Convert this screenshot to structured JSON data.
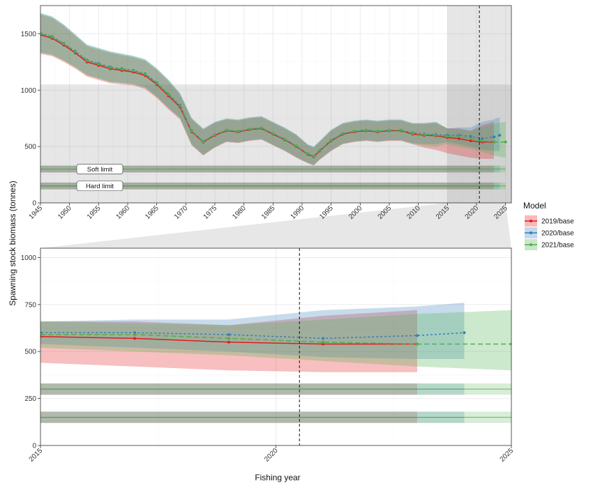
{
  "chart_data": {
    "type": "line",
    "xlabel": "Fishing year",
    "ylabel": "Spawning stock biomass (tonnes)",
    "legend": {
      "title": "Model",
      "placement": "right",
      "entries": [
        {
          "name": "2019/base",
          "color": "#e41a1c"
        },
        {
          "name": "2020/base",
          "color": "#377eb8"
        },
        {
          "name": "2021/base",
          "color": "#4daf4a"
        }
      ]
    },
    "colors": {
      "2019/base": "#e41a1c",
      "2020/base": "#377eb8",
      "2021/base": "#4daf4a"
    },
    "reference_lines": [
      {
        "label": "Soft limit",
        "value": 300
      },
      {
        "label": "Hard limit",
        "value": 150
      }
    ],
    "current_year_marker": 2020.5,
    "panels": [
      {
        "name": "full-series",
        "xlim": [
          1945,
          2026
        ],
        "ylim": [
          0,
          1750
        ],
        "xticks": [
          1945,
          1950,
          1955,
          1960,
          1965,
          1970,
          1975,
          1980,
          1985,
          1990,
          1995,
          2000,
          2005,
          2010,
          2015,
          2020,
          2025
        ],
        "yticks": [
          0,
          500,
          1000,
          1500
        ],
        "zoom_region": {
          "x": [
            2015,
            2025
          ],
          "y": [
            0,
            1050
          ]
        }
      },
      {
        "name": "zoom",
        "xlim": [
          2015,
          2025
        ],
        "ylim": [
          0,
          1050
        ],
        "xticks": [
          2015,
          2020,
          2025
        ],
        "yticks": [
          0,
          250,
          500,
          750,
          1000
        ]
      }
    ],
    "series": [
      {
        "name": "2019/base",
        "x": [
          1945,
          1947,
          1949,
          1951,
          1953,
          1955,
          1957,
          1959,
          1961,
          1963,
          1965,
          1967,
          1969,
          1971,
          1973,
          1975,
          1977,
          1979,
          1981,
          1983,
          1985,
          1987,
          1989,
          1991,
          1992,
          1993,
          1995,
          1997,
          1999,
          2001,
          2003,
          2005,
          2007,
          2009,
          2011,
          2013,
          2015,
          2017,
          2019,
          2021,
          2023
        ],
        "y": [
          1490,
          1460,
          1400,
          1330,
          1250,
          1220,
          1190,
          1175,
          1160,
          1130,
          1050,
          950,
          850,
          630,
          540,
          600,
          640,
          630,
          650,
          660,
          610,
          560,
          500,
          430,
          410,
          460,
          550,
          610,
          630,
          640,
          630,
          640,
          640,
          610,
          600,
          595,
          580,
          570,
          550,
          540,
          540
        ],
        "lower": [
          1320,
          1300,
          1250,
          1190,
          1120,
          1090,
          1060,
          1050,
          1040,
          1010,
          930,
          830,
          740,
          510,
          420,
          490,
          540,
          530,
          550,
          560,
          510,
          460,
          400,
          350,
          330,
          380,
          460,
          520,
          540,
          550,
          540,
          550,
          550,
          520,
          490,
          470,
          440,
          420,
          400,
          390,
          390
        ],
        "upper": [
          1670,
          1640,
          1570,
          1480,
          1390,
          1360,
          1330,
          1310,
          1290,
          1260,
          1180,
          1080,
          960,
          740,
          650,
          710,
          740,
          730,
          750,
          760,
          710,
          660,
          600,
          510,
          490,
          540,
          640,
          700,
          720,
          730,
          720,
          730,
          730,
          700,
          700,
          710,
          660,
          660,
          640,
          690,
          720
        ]
      },
      {
        "name": "2020/base",
        "x": [
          1945,
          1947,
          1949,
          1951,
          1953,
          1955,
          1957,
          1959,
          1961,
          1963,
          1965,
          1967,
          1969,
          1971,
          1973,
          1975,
          1977,
          1979,
          1981,
          1983,
          1985,
          1987,
          1989,
          1991,
          1992,
          1993,
          1995,
          1997,
          1999,
          2001,
          2003,
          2005,
          2007,
          2009,
          2011,
          2013,
          2015,
          2017,
          2019,
          2021,
          2023,
          2024
        ],
        "y": [
          1505,
          1475,
          1415,
          1345,
          1265,
          1235,
          1205,
          1190,
          1175,
          1145,
          1065,
          965,
          865,
          640,
          545,
          605,
          645,
          635,
          655,
          665,
          615,
          565,
          505,
          435,
          415,
          465,
          555,
          615,
          635,
          645,
          635,
          645,
          645,
          620,
          610,
          605,
          600,
          600,
          590,
          570,
          585,
          600
        ],
        "lower": [
          1335,
          1315,
          1265,
          1205,
          1135,
          1105,
          1075,
          1065,
          1055,
          1025,
          945,
          845,
          755,
          520,
          425,
          495,
          545,
          535,
          555,
          565,
          515,
          465,
          405,
          355,
          335,
          385,
          465,
          525,
          545,
          555,
          545,
          555,
          555,
          530,
          520,
          520,
          540,
          520,
          500,
          470,
          460,
          460
        ],
        "upper": [
          1685,
          1655,
          1585,
          1495,
          1405,
          1375,
          1345,
          1325,
          1305,
          1275,
          1195,
          1095,
          975,
          755,
          660,
          720,
          750,
          740,
          760,
          770,
          720,
          670,
          610,
          520,
          500,
          550,
          650,
          710,
          730,
          740,
          730,
          740,
          740,
          710,
          710,
          720,
          660,
          670,
          670,
          720,
          740,
          760
        ]
      },
      {
        "name": "2021/base",
        "x": [
          1945,
          1947,
          1949,
          1951,
          1953,
          1955,
          1957,
          1959,
          1961,
          1963,
          1965,
          1967,
          1969,
          1971,
          1973,
          1975,
          1977,
          1979,
          1981,
          1983,
          1985,
          1987,
          1989,
          1991,
          1992,
          1993,
          1995,
          1997,
          1999,
          2001,
          2003,
          2005,
          2007,
          2009,
          2011,
          2013,
          2015,
          2017,
          2019,
          2021,
          2023,
          2025
        ],
        "y": [
          1500,
          1470,
          1410,
          1340,
          1260,
          1230,
          1200,
          1185,
          1170,
          1140,
          1060,
          960,
          860,
          635,
          545,
          605,
          645,
          635,
          655,
          665,
          615,
          565,
          505,
          435,
          415,
          465,
          555,
          615,
          635,
          645,
          635,
          645,
          645,
          615,
          605,
          600,
          590,
          590,
          570,
          550,
          540,
          540
        ],
        "lower": [
          1330,
          1310,
          1260,
          1200,
          1130,
          1100,
          1070,
          1060,
          1050,
          1020,
          940,
          840,
          750,
          515,
          425,
          495,
          545,
          535,
          555,
          565,
          515,
          465,
          405,
          355,
          335,
          385,
          465,
          525,
          545,
          555,
          545,
          555,
          555,
          525,
          510,
          500,
          520,
          500,
          480,
          450,
          420,
          400
        ],
        "upper": [
          1680,
          1650,
          1580,
          1490,
          1400,
          1370,
          1340,
          1320,
          1300,
          1270,
          1190,
          1090,
          970,
          750,
          655,
          715,
          745,
          735,
          755,
          765,
          715,
          665,
          605,
          515,
          495,
          545,
          645,
          705,
          725,
          735,
          725,
          735,
          735,
          705,
          705,
          715,
          660,
          650,
          640,
          670,
          700,
          720
        ]
      }
    ]
  }
}
